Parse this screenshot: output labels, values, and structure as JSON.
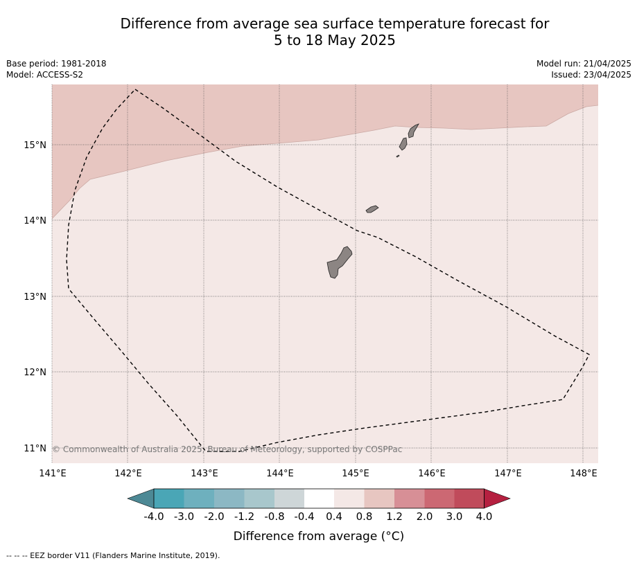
{
  "header": {
    "title_line1": "Difference from average sea surface temperature forecast for",
    "title_line2": "5 to 18 May 2025",
    "base_period": "Base period: 1981-2018",
    "model": "Model: ACCESS-S2",
    "model_run": "Model run: 21/04/2025",
    "issued": "Issued: 23/04/2025"
  },
  "map": {
    "lat_labels": [
      "15°N",
      "14°N",
      "13°N",
      "12°N",
      "11°N"
    ],
    "lon_labels": [
      "141°E",
      "142°E",
      "143°E",
      "144°E",
      "145°E",
      "146°E",
      "147°E",
      "148°E"
    ],
    "copyright": "© Commonwealth of Australia 2025, Bureau of Meteorology, supported by COSPPac",
    "regions": [
      {
        "name": "north-anomaly-band",
        "class": "0.8 to 1.2",
        "color": "#e7c6c1"
      },
      {
        "name": "south-anomaly-area",
        "class": "0.4 to 0.8",
        "color": "#f4e8e6"
      }
    ],
    "land_color": "#8c8583",
    "lat_range": [
      10.8,
      15.8
    ],
    "lon_range": [
      141.0,
      148.2
    ]
  },
  "colorbar": {
    "tick_labels": [
      "-4.0",
      "-3.0",
      "-2.0",
      "-1.2",
      "-0.8",
      "-0.4",
      "0.4",
      "0.8",
      "1.2",
      "2.0",
      "3.0",
      "4.0"
    ],
    "colors": [
      "#4d8995",
      "#4aa6b6",
      "#6eb0be",
      "#8cb8c4",
      "#a8c7cc",
      "#ced6d8",
      "#ffffff",
      "#f4e8e6",
      "#e7c6c1",
      "#d78f96",
      "#cc6873",
      "#c04b5b",
      "#b52040"
    ],
    "title": "Difference from average (°C)"
  },
  "footnote": "--  --  -- EEZ border V11 (Flanders Marine Institute, 2019)."
}
